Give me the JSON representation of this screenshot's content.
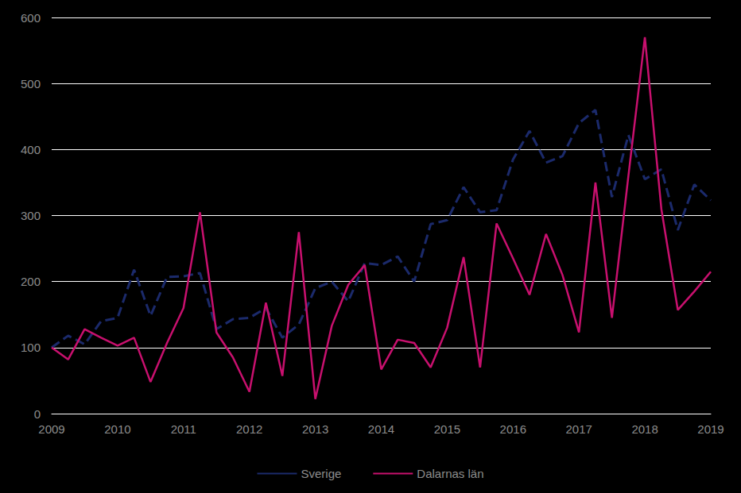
{
  "chart_data": {
    "type": "line",
    "categories": [
      "2009",
      null,
      null,
      null,
      "2010",
      null,
      null,
      null,
      "2011",
      null,
      null,
      null,
      "2012",
      null,
      null,
      null,
      "2013",
      null,
      null,
      null,
      "2014",
      null,
      null,
      null,
      "2015",
      null,
      null,
      null,
      "2016",
      null,
      null,
      null,
      "2017",
      null,
      null,
      null,
      "2018",
      null,
      null,
      null,
      "2019"
    ],
    "series": [
      {
        "name": "Sverige",
        "color": "#1b2a6b",
        "line_style": "dashed",
        "values": [
          100,
          118,
          105,
          140,
          145,
          218,
          148,
          207,
          208,
          213,
          128,
          143,
          145,
          160,
          115,
          135,
          190,
          200,
          170,
          228,
          225,
          238,
          200,
          287,
          293,
          343,
          305,
          308,
          385,
          428,
          380,
          390,
          440,
          460,
          328,
          422,
          355,
          370,
          278,
          347,
          323
        ]
      },
      {
        "name": "Dalarnas län",
        "color": "#c8106e",
        "line_style": "solid",
        "values": [
          100,
          82,
          128,
          115,
          103,
          115,
          48,
          107,
          160,
          305,
          123,
          85,
          33,
          168,
          57,
          275,
          22,
          133,
          195,
          225,
          67,
          112,
          107,
          70,
          130,
          237,
          70,
          288,
          235,
          180,
          272,
          210,
          123,
          350,
          145,
          360,
          570,
          310,
          157,
          185,
          215
        ]
      }
    ],
    "ylim": [
      0,
      600
    ],
    "yticks": [
      0,
      100,
      200,
      300,
      400,
      500,
      600
    ],
    "grid": true,
    "legend": "bottom"
  }
}
